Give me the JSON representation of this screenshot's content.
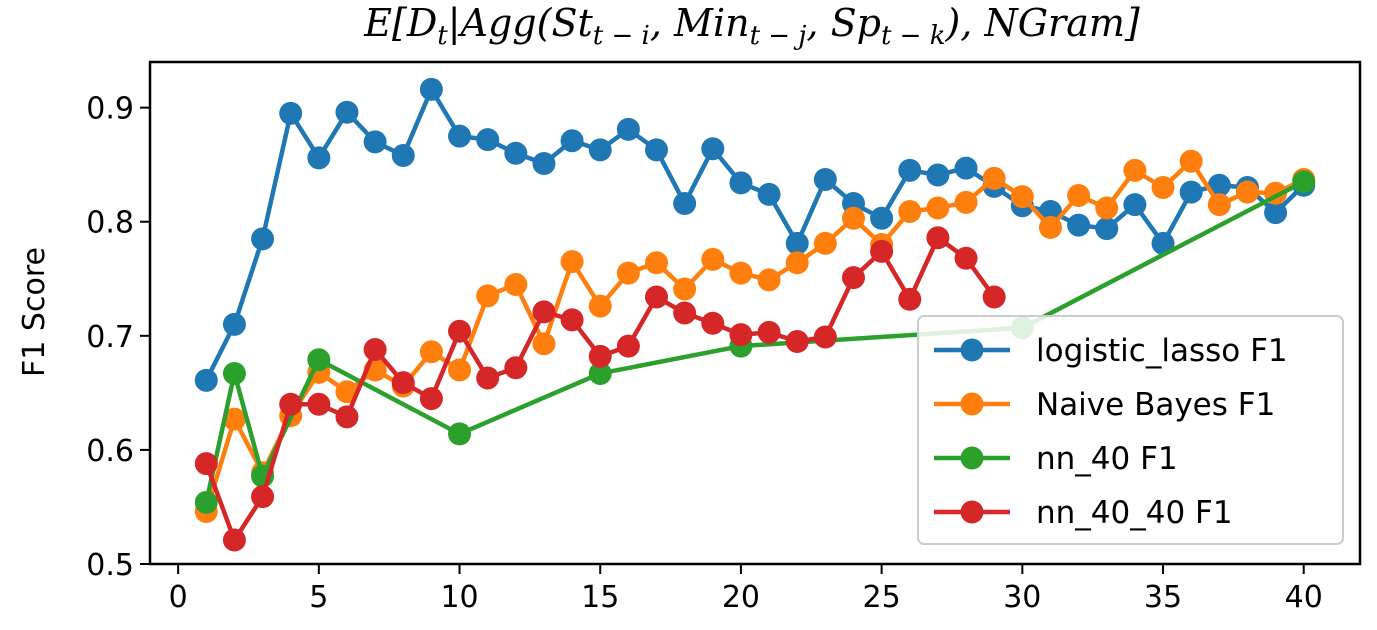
{
  "chart_data": {
    "type": "line",
    "title_parts": {
      "E": "E[",
      "D": "D",
      "sub_t": "t",
      "bar_agg": "|Agg(",
      "St": "St",
      "sub_ti": "t − i",
      "comma1": ", ",
      "Min": "Min",
      "sub_tj": "t − j",
      "comma2": ", ",
      "Sp": "Sp",
      "sub_tk": "t − k",
      "close": "), NGram]"
    },
    "ylabel": "F1 Score",
    "xlabel": "",
    "xlim": [
      -1.0,
      42.0
    ],
    "ylim": [
      0.5,
      0.94
    ],
    "xticks": [
      0,
      5,
      10,
      15,
      20,
      25,
      30,
      35,
      40
    ],
    "yticks": [
      0.5,
      0.6,
      0.7,
      0.8,
      0.9
    ],
    "ytick_labels": [
      "0.5",
      "0.6",
      "0.7",
      "0.8",
      "0.9"
    ],
    "grid": false,
    "legend_position": "lower-right",
    "series": [
      {
        "name": "logistic_lasso F1",
        "color": "#1f77b4",
        "x": [
          1,
          2,
          3,
          4,
          5,
          6,
          7,
          8,
          9,
          10,
          11,
          12,
          13,
          14,
          15,
          16,
          17,
          18,
          19,
          20,
          21,
          22,
          23,
          24,
          25,
          26,
          27,
          28,
          29,
          30,
          31,
          32,
          33,
          34,
          35,
          36,
          37,
          38,
          39,
          40
        ],
        "y": [
          0.661,
          0.71,
          0.785,
          0.895,
          0.856,
          0.896,
          0.87,
          0.858,
          0.916,
          0.875,
          0.872,
          0.86,
          0.851,
          0.871,
          0.863,
          0.881,
          0.863,
          0.816,
          0.864,
          0.834,
          0.824,
          0.781,
          0.837,
          0.816,
          0.803,
          0.845,
          0.841,
          0.847,
          0.831,
          0.814,
          0.809,
          0.797,
          0.794,
          0.815,
          0.781,
          0.826,
          0.832,
          0.83,
          0.808,
          0.832
        ]
      },
      {
        "name": "Naive Bayes F1",
        "color": "#ff7f0e",
        "x": [
          1,
          2,
          3,
          4,
          5,
          6,
          7,
          8,
          9,
          10,
          11,
          12,
          13,
          14,
          15,
          16,
          17,
          18,
          19,
          20,
          21,
          22,
          23,
          24,
          25,
          26,
          27,
          28,
          29,
          30,
          31,
          32,
          33,
          34,
          35,
          36,
          37,
          38,
          39,
          40
        ],
        "y": [
          0.546,
          0.627,
          0.58,
          0.63,
          0.668,
          0.651,
          0.67,
          0.656,
          0.686,
          0.67,
          0.735,
          0.745,
          0.693,
          0.765,
          0.726,
          0.755,
          0.764,
          0.741,
          0.767,
          0.755,
          0.749,
          0.764,
          0.781,
          0.803,
          0.78,
          0.809,
          0.812,
          0.817,
          0.838,
          0.822,
          0.795,
          0.823,
          0.812,
          0.845,
          0.83,
          0.853,
          0.815,
          0.826,
          0.825,
          0.837
        ]
      },
      {
        "name": "nn_40 F1",
        "color": "#2ca02c",
        "x": [
          1,
          2,
          3,
          5,
          10,
          15,
          20,
          30,
          40
        ],
        "y": [
          0.554,
          0.667,
          0.577,
          0.679,
          0.614,
          0.667,
          0.691,
          0.707,
          0.835
        ]
      },
      {
        "name": "nn_40_40 F1",
        "color": "#d62728",
        "x": [
          1,
          2,
          3,
          4,
          5,
          6,
          7,
          8,
          9,
          10,
          11,
          12,
          13,
          14,
          15,
          16,
          17,
          18,
          19,
          20,
          21,
          22,
          23,
          24,
          25,
          26,
          27,
          28,
          29
        ],
        "y": [
          0.588,
          0.521,
          0.559,
          0.64,
          0.64,
          0.629,
          0.688,
          0.659,
          0.645,
          0.704,
          0.663,
          0.672,
          0.721,
          0.714,
          0.682,
          0.691,
          0.734,
          0.72,
          0.711,
          0.701,
          0.703,
          0.695,
          0.699,
          0.751,
          0.774,
          0.732,
          0.786,
          0.768,
          0.734
        ]
      }
    ]
  }
}
